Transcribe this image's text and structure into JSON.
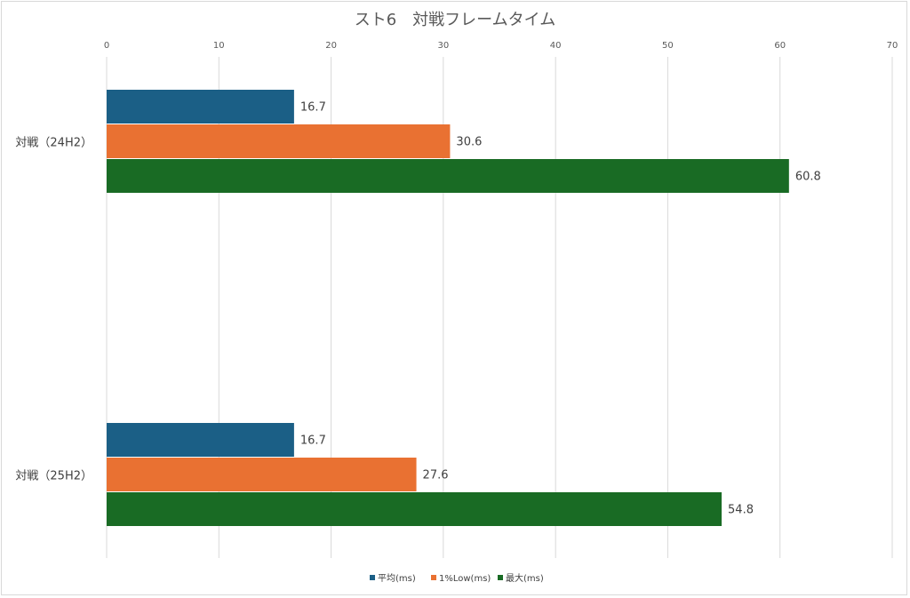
{
  "chart_data": {
    "type": "bar",
    "orientation": "horizontal",
    "title": "スト6　対戦フレームタイム",
    "categories": [
      "対戦（24H2）",
      "対戦（25H2）"
    ],
    "series": [
      {
        "name": "平均(ms)",
        "color": "#1b5f86",
        "values": [
          16.7,
          16.7
        ]
      },
      {
        "name": "1%Low(ms)",
        "color": "#e97132",
        "values": [
          30.6,
          27.6
        ]
      },
      {
        "name": "最大(ms)",
        "color": "#196b24",
        "values": [
          60.8,
          54.8
        ]
      }
    ],
    "xlim": [
      0,
      70
    ],
    "xticks": [
      "0",
      "10",
      "20",
      "30",
      "40",
      "50",
      "60",
      "70"
    ],
    "grid": "vertical",
    "x_axis_position": "top",
    "legend": "bottom",
    "data_labels": true
  }
}
